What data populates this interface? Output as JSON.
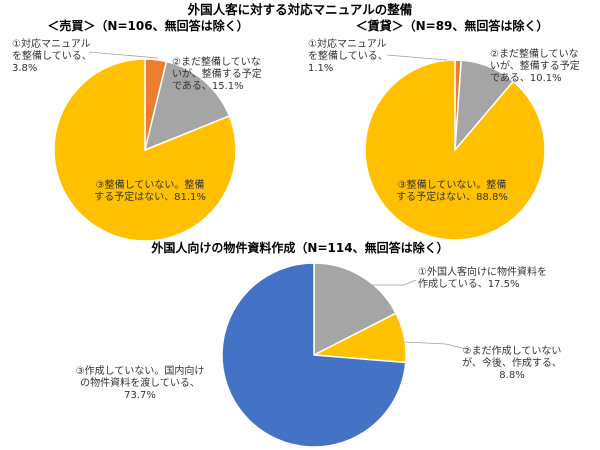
{
  "page": {
    "title": "外国人客に対する対応マニュアルの整備"
  },
  "colors": {
    "orange": "#ED7D31",
    "gray": "#A5A5A5",
    "gold": "#FFC000",
    "blue": "#4472C4",
    "leader": "#9e9e9e"
  },
  "chart_data": [
    {
      "type": "pie",
      "title": "＜売買＞（N=106、無回答は除く）",
      "slices": [
        {
          "label": "①対応マニュアルを整備している、3.8%",
          "lines": [
            "①対応マニュアル",
            "を整備している、",
            "3.8%"
          ],
          "value": 3.8,
          "color": "#ED7D31"
        },
        {
          "label": "②まだ整備していないが、整備する予定である、15.1%",
          "lines": [
            "②まだ整備していな",
            "いが、整備する予定",
            "である、15.1%"
          ],
          "value": 15.1,
          "color": "#A5A5A5"
        },
        {
          "label": "③整備していない。整備する予定はない、81.1%",
          "lines": [
            "③整備していない。整備",
            "する予定はない、81.1%"
          ],
          "value": 81.1,
          "color": "#FFC000"
        }
      ]
    },
    {
      "type": "pie",
      "title": "＜賃貸＞（N=89、無回答は除く）",
      "slices": [
        {
          "label": "①対応マニュアルを整備している、1.1%",
          "lines": [
            "①対応マニュアル",
            "を整備している、",
            "1.1%"
          ],
          "value": 1.1,
          "color": "#ED7D31"
        },
        {
          "label": "②まだ整備していないが、整備する予定である、10.1%",
          "lines": [
            "②まだ整備していな",
            "いが、整備する予定",
            "である、10.1%"
          ],
          "value": 10.1,
          "color": "#A5A5A5"
        },
        {
          "label": "③整備していない。整備する予定はない、88.8%",
          "lines": [
            "③整備していない。整備",
            "する予定はない、88.8%"
          ],
          "value": 88.8,
          "color": "#FFC000"
        }
      ]
    },
    {
      "type": "pie",
      "title": "外国人向けの物件資料作成（N=114、無回答は除く）",
      "slices": [
        {
          "label": "①外国人客向けに物件資料を作成している、17.5%",
          "lines": [
            "①外国人客向けに物件資料を",
            "作成している、17.5%"
          ],
          "value": 17.5,
          "color": "#A5A5A5"
        },
        {
          "label": "②まだ作成していないが、今後、作成する、8.8%",
          "lines": [
            "②まだ作成していない",
            "が、今後、作成する、",
            "8.8%"
          ],
          "value": 8.8,
          "color": "#FFC000"
        },
        {
          "label": "③作成していない。国内向けの物件資料を渡している、73.7%",
          "lines": [
            "③作成していない。国内向け",
            "の物件資料を渡している、",
            "73.7%"
          ],
          "value": 73.7,
          "color": "#4472C4"
        }
      ]
    }
  ]
}
